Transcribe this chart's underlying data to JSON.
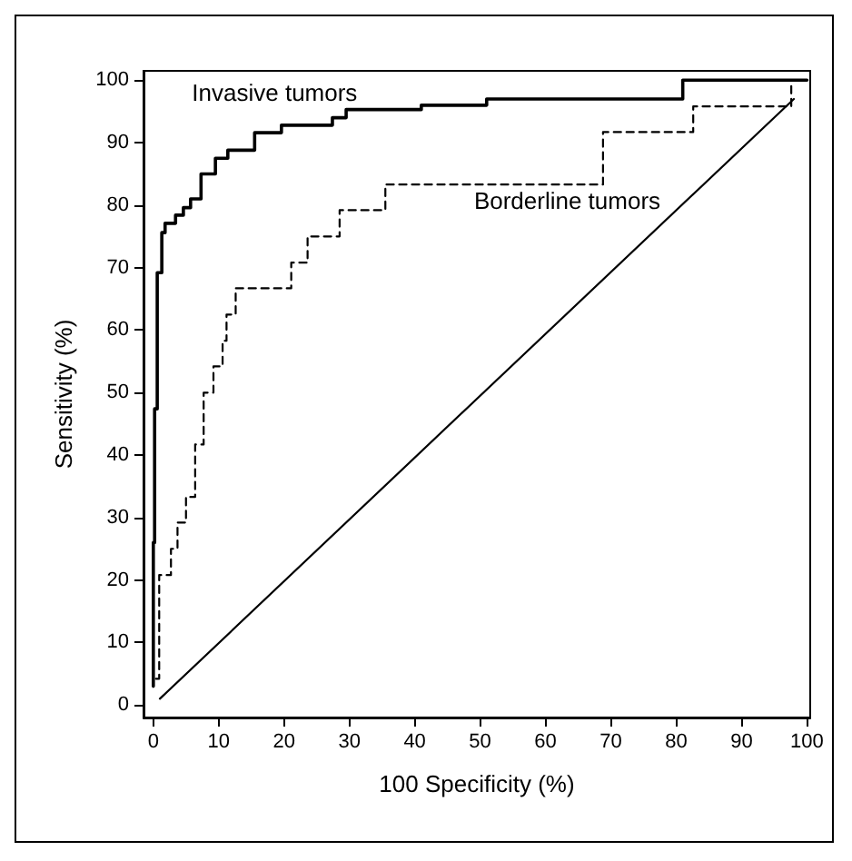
{
  "chart_data": {
    "type": "step",
    "xlabel": "100 Specificity (%)",
    "ylabel": "Sensitivity (%)",
    "xlim": [
      -1.5,
      100.5
    ],
    "ylim": [
      -2,
      101.5
    ],
    "xticks": [
      0,
      10,
      20,
      30,
      40,
      50,
      60,
      70,
      80,
      90,
      100
    ],
    "yticks": [
      0,
      10,
      20,
      30,
      40,
      50,
      60,
      70,
      80,
      90,
      100
    ],
    "grid": false,
    "marker": "none",
    "series": [
      {
        "name": "Invasive tumors",
        "color": "#000000",
        "line_style": "solid",
        "x": [
          0,
          0,
          0.2,
          0.6,
          1.3,
          1.8,
          3.4,
          4.6,
          5.7,
          7.3,
          9.5,
          11.4,
          15.5,
          19.6,
          27.4,
          29.5,
          41,
          51,
          81,
          100
        ],
        "values": [
          3,
          26,
          47.4,
          69.2,
          75.6,
          77.1,
          78.4,
          79.6,
          81,
          85,
          87.5,
          88.8,
          91.6,
          92.8,
          94,
          95.3,
          96,
          97,
          100,
          100
        ]
      },
      {
        "name": "Borderline tumors",
        "color": "#000000",
        "line_style": "dashed",
        "x": [
          0.4,
          0.9,
          2.7,
          3.7,
          5,
          6.4,
          7.7,
          9.2,
          10.6,
          11.2,
          12.6,
          21.1,
          23.6,
          28.5,
          35.5,
          68.8,
          82.6,
          97.6
        ],
        "values": [
          4.2,
          20.8,
          25,
          29.2,
          33.3,
          41.7,
          50,
          54.2,
          58.3,
          62.5,
          66.7,
          70.8,
          75,
          79.2,
          83.3,
          91.7,
          95.8,
          100
        ]
      },
      {
        "type": "line",
        "color": "#000000",
        "line_style": "solid",
        "x": [
          1,
          98
        ],
        "values": [
          1,
          97
        ]
      }
    ]
  }
}
